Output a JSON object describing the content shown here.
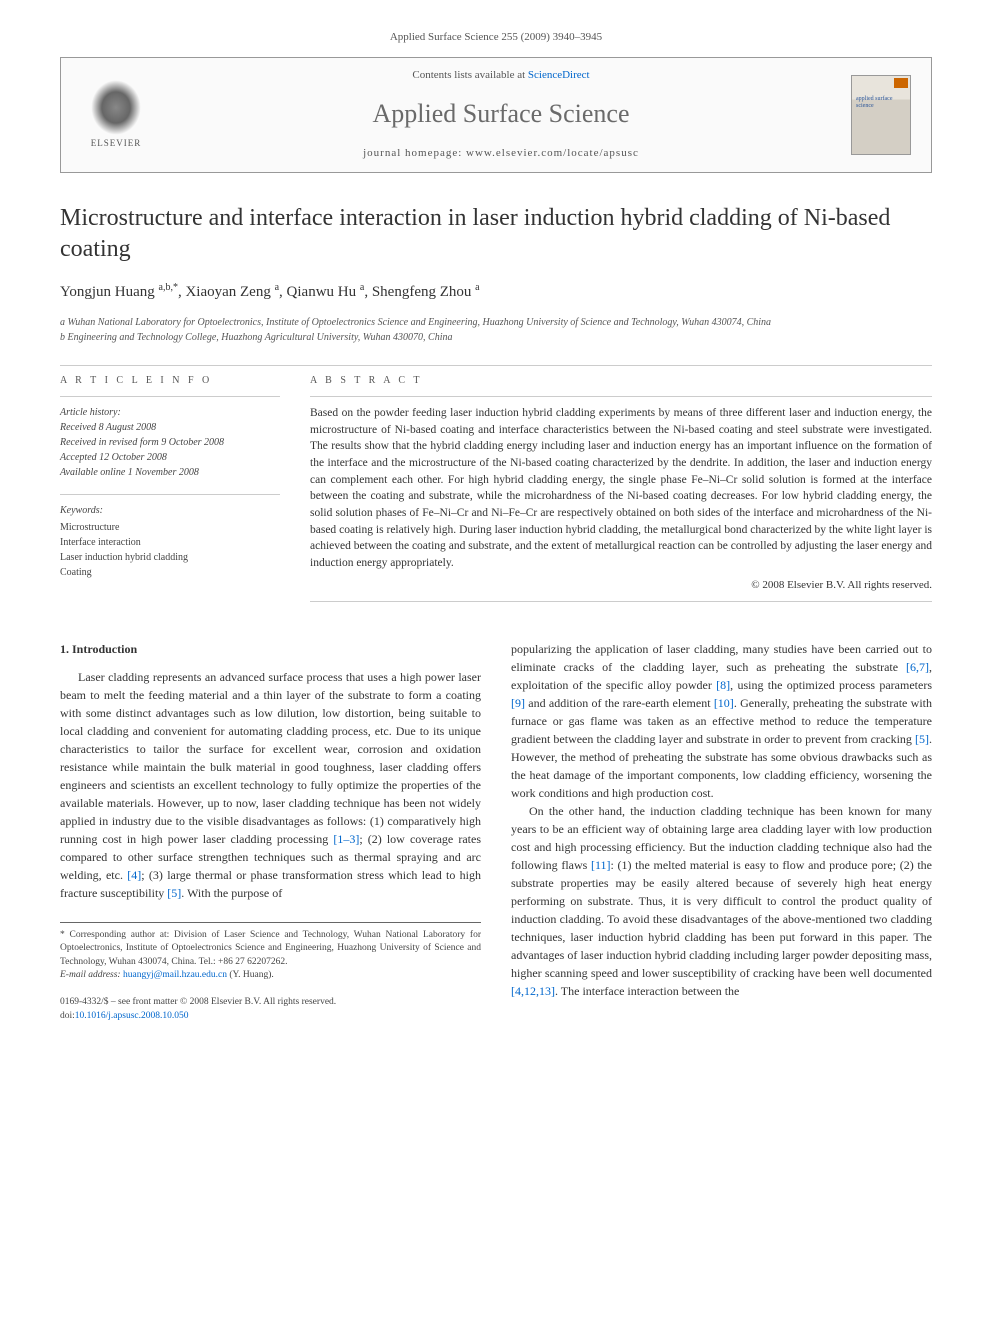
{
  "citation": "Applied Surface Science 255 (2009) 3940–3945",
  "header": {
    "contents_prefix": "Contents lists available at ",
    "contents_link": "ScienceDirect",
    "journal_name": "Applied Surface Science",
    "homepage_prefix": "journal homepage: ",
    "homepage_url": "www.elsevier.com/locate/apsusc",
    "elsevier_label": "ELSEVIER",
    "cover_text": "applied surface science"
  },
  "article": {
    "title": "Microstructure and interface interaction in laser induction hybrid cladding of Ni-based coating",
    "authors_html": "Yongjun Huang <sup>a,b,*</sup>, Xiaoyan Zeng <sup>a</sup>, Qianwu Hu <sup>a</sup>, Shengfeng Zhou <sup>a</sup>",
    "affiliations": [
      "a Wuhan National Laboratory for Optoelectronics, Institute of Optoelectronics Science and Engineering, Huazhong University of Science and Technology, Wuhan 430074, China",
      "b Engineering and Technology College, Huazhong Agricultural University, Wuhan 430070, China"
    ]
  },
  "info": {
    "section_label": "A R T I C L E   I N F O",
    "history_label": "Article history:",
    "history": [
      "Received 8 August 2008",
      "Received in revised form 9 October 2008",
      "Accepted 12 October 2008",
      "Available online 1 November 2008"
    ],
    "keywords_label": "Keywords:",
    "keywords": [
      "Microstructure",
      "Interface interaction",
      "Laser induction hybrid cladding",
      "Coating"
    ]
  },
  "abstract": {
    "section_label": "A B S T R A C T",
    "text": "Based on the powder feeding laser induction hybrid cladding experiments by means of three different laser and induction energy, the microstructure of Ni-based coating and interface characteristics between the Ni-based coating and steel substrate were investigated. The results show that the hybrid cladding energy including laser and induction energy has an important influence on the formation of the interface and the microstructure of the Ni-based coating characterized by the dendrite. In addition, the laser and induction energy can complement each other. For high hybrid cladding energy, the single phase Fe–Ni–Cr solid solution is formed at the interface between the coating and substrate, while the microhardness of the Ni-based coating decreases. For low hybrid cladding energy, the solid solution phases of Fe–Ni–Cr and Ni–Fe–Cr are respectively obtained on both sides of the interface and microhardness of the Ni-based coating is relatively high. During laser induction hybrid cladding, the metallurgical bond characterized by the white light layer is achieved between the coating and substrate, and the extent of metallurgical reaction can be controlled by adjusting the laser energy and induction energy appropriately.",
    "copyright": "© 2008 Elsevier B.V. All rights reserved."
  },
  "body": {
    "section_number": "1.",
    "section_title": "Introduction",
    "col1_p1": "Laser cladding represents an advanced surface process that uses a high power laser beam to melt the feeding material and a thin layer of the substrate to form a coating with some distinct advantages such as low dilution, low distortion, being suitable to local cladding and convenient for automating cladding process, etc. Due to its unique characteristics to tailor the surface for excellent wear, corrosion and oxidation resistance while maintain the bulk material in good toughness, laser cladding offers engineers and scientists an excellent technology to fully optimize the properties of the available materials. However, up to now, laser cladding technique has been not widely applied in industry due to the visible disadvantages as follows: (1) comparatively high running cost in high power laser cladding processing ",
    "col1_ref1": "[1–3]",
    "col1_p1b": "; (2) low coverage rates compared to other surface strengthen techniques such as thermal spraying and arc welding, etc. ",
    "col1_ref2": "[4]",
    "col1_p1c": "; (3) large thermal or phase transformation stress which lead to high fracture susceptibility ",
    "col1_ref3": "[5]",
    "col1_p1d": ". With the purpose of",
    "col2_p1a": "popularizing the application of laser cladding, many studies have been carried out to eliminate cracks of the cladding layer, such as preheating the substrate ",
    "col2_ref1": "[6,7]",
    "col2_p1b": ", exploitation of the specific alloy powder ",
    "col2_ref2": "[8]",
    "col2_p1c": ", using the optimized process parameters ",
    "col2_ref3": "[9]",
    "col2_p1d": " and addition of the rare-earth element ",
    "col2_ref4": "[10]",
    "col2_p1e": ". Generally, preheating the substrate with furnace or gas flame was taken as an effective method to reduce the temperature gradient between the cladding layer and substrate in order to prevent from cracking ",
    "col2_ref5": "[5]",
    "col2_p1f": ". However, the method of preheating the substrate has some obvious drawbacks such as the heat damage of the important components, low cladding efficiency, worsening the work conditions and high production cost.",
    "col2_p2a": "On the other hand, the induction cladding technique has been known for many years to be an efficient way of obtaining large area cladding layer with low production cost and high processing efficiency. But the induction cladding technique also had the following flaws ",
    "col2_ref6": "[11]",
    "col2_p2b": ": (1) the melted material is easy to flow and produce pore; (2) the substrate properties may be easily altered because of severely high heat energy performing on substrate. Thus, it is very difficult to control the product quality of induction cladding. To avoid these disadvantages of the above-mentioned two cladding techniques, laser induction hybrid cladding has been put forward in this paper. The advantages of laser induction hybrid cladding including larger powder depositing mass, higher scanning speed and lower susceptibility of cracking have been well documented ",
    "col2_ref7": "[4,12,13]",
    "col2_p2c": ". The interface interaction between the"
  },
  "footnotes": {
    "corresponding": "* Corresponding author at: Division of Laser Science and Technology, Wuhan National Laboratory for Optoelectronics, Institute of Optoelectronics Science and Engineering, Huazhong University of Science and Technology, Wuhan 430074, China. Tel.: +86 27 62207262.",
    "email_label": "E-mail address: ",
    "email": "huangyj@mail.hzau.edu.cn",
    "email_suffix": " (Y. Huang)."
  },
  "footer": {
    "issn_line": "0169-4332/$ – see front matter © 2008 Elsevier B.V. All rights reserved.",
    "doi_prefix": "doi:",
    "doi": "10.1016/j.apsusc.2008.10.050"
  },
  "colors": {
    "link": "#0066cc",
    "text": "#333333",
    "muted": "#555555",
    "border": "#999999"
  }
}
